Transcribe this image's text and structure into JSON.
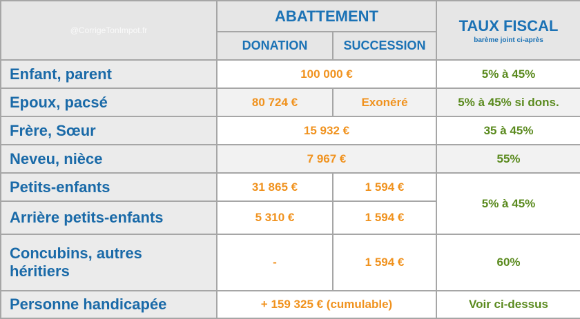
{
  "header": {
    "watermark": "@CorrigeTonImpot.fr",
    "abattement": "ABATTEMENT",
    "donation": "DONATION",
    "succession": "SUCCESSION",
    "taux": "TAUX FISCAL",
    "taux_note": "barème joint ci-après"
  },
  "rows": [
    {
      "label": "Enfant, parent",
      "abattement": "100 000 €",
      "taux": "5% à 45%"
    },
    {
      "label": "Epoux, pacsé",
      "donation": "80 724 €",
      "succession": "Exonéré",
      "taux": "5% à 45% si dons."
    },
    {
      "label": "Frère, Sœur",
      "abattement": "15 932 €",
      "taux": "35 à 45%"
    },
    {
      "label": "Neveu, nièce",
      "abattement": "7 967 €",
      "taux": "55%"
    },
    {
      "label": "Petits-enfants",
      "donation": "31 865 €",
      "succession": "1 594 €",
      "taux": "5% à 45%"
    },
    {
      "label": "Arrière petits-enfants",
      "donation": "5 310 €",
      "succession": "1 594 €"
    },
    {
      "label": "Concubins, autres héritiers",
      "donation": "-",
      "succession": "1 594 €",
      "taux": "60%"
    },
    {
      "label": "Personne handicapée",
      "abattement": "+ 159 325 € (cumulable)",
      "taux": "Voir ci-dessus"
    }
  ]
}
